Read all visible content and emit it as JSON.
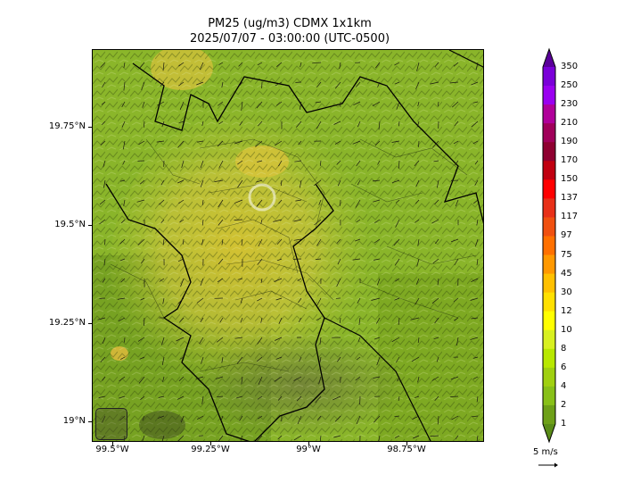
{
  "title": {
    "line1": "PM25 (ug/m3) CDMX 1x1km",
    "line2": "2025/07/07 - 03:00:00 (UTC-0500)"
  },
  "axes": {
    "y_ticks": [
      "19.75°N",
      "19.5°N",
      "19.25°N",
      "19°N"
    ],
    "x_ticks": [
      "99.5°W",
      "99.25°W",
      "99°W",
      "98.75°W"
    ]
  },
  "colorbar": {
    "labels": [
      "350",
      "250",
      "230",
      "210",
      "190",
      "170",
      "150",
      "137",
      "117",
      "97",
      "75",
      "45",
      "30",
      "12",
      "10",
      "8",
      "6",
      "4",
      "2",
      "1"
    ],
    "colors": [
      "#5a009a",
      "#7a00d8",
      "#9a00f0",
      "#b0009a",
      "#a0005a",
      "#8e0030",
      "#c00010",
      "#ff0000",
      "#e83018",
      "#f05010",
      "#ff7000",
      "#ff9800",
      "#ffc000",
      "#ffe000",
      "#ffff00",
      "#d8f020",
      "#b8e800",
      "#a0d010",
      "#88c018",
      "#6ea018",
      "#5a8c18"
    ]
  },
  "wind_scale": {
    "label": "5 m/s"
  },
  "logos": {
    "left_icon": "sedema-logo-icon",
    "right_icon": "cdmx-logo-icon"
  }
}
